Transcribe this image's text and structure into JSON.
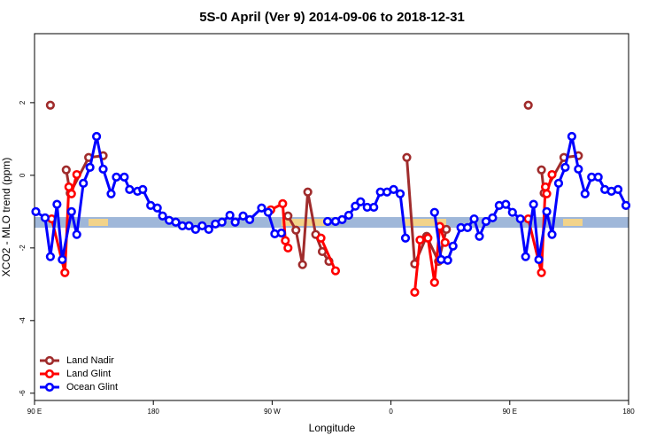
{
  "chart_data": {
    "type": "line",
    "title": "5S-0 April (Ver 9)   2014-09-06 to 2018-12-31",
    "x_label": "Longitude",
    "y_label": "XCO2 - MLO trend (ppm)",
    "xlim": [
      90,
      540
    ],
    "ylim": [
      -6.2,
      3.9
    ],
    "xticks": [
      {
        "value": 90,
        "label": "90 E"
      },
      180,
      {
        "value": 270,
        "label": "90 W"
      },
      {
        "value": 360,
        "label": "0"
      },
      {
        "value": 450,
        "label": "90 E"
      },
      {
        "value": 540,
        "label": "180"
      }
    ],
    "yticks": [
      -6,
      -4,
      -2,
      0,
      2
    ],
    "legend": "bottom-left",
    "series": [
      {
        "name": "Land Nadir",
        "color": "#a02c2c",
        "x": [
          102,
          108,
          114,
          117,
          131,
          142,
          200,
          282,
          288,
          293,
          297,
          303,
          308,
          313,
          340,
          372,
          378,
          387,
          396,
          402,
          430,
          464,
          470,
          474,
          476,
          491,
          502
        ],
        "values": [
          1.93,
          null,
          0.15,
          -0.49,
          0.49,
          0.54,
          null,
          -1.12,
          -1.51,
          -2.46,
          -0.46,
          -1.63,
          -2.1,
          -2.37,
          null,
          0.49,
          -2.44,
          -1.68,
          -2.37,
          -1.49,
          null,
          1.93,
          null,
          0.15,
          -0.49,
          0.49,
          0.54
        ]
      },
      {
        "name": "Land Glint",
        "color": "#ff0000",
        "x": [
          103,
          113,
          116,
          118,
          122,
          200,
          269,
          278,
          280,
          282,
          295,
          307,
          318,
          340,
          378,
          382,
          388,
          393,
          397,
          401,
          430,
          464,
          474,
          477,
          478,
          482
        ],
        "values": [
          -1.2,
          -2.68,
          -0.32,
          -0.51,
          0.02,
          null,
          -0.95,
          -0.78,
          -1.8,
          -2.0,
          null,
          -1.73,
          -2.63,
          null,
          -3.22,
          -1.78,
          -1.73,
          -2.95,
          -1.41,
          -1.85,
          null,
          -1.2,
          -2.68,
          -0.32,
          -0.51,
          0.02
        ]
      },
      {
        "name": "Ocean Glint",
        "color": "#0000ff",
        "x": [
          91,
          98,
          102,
          107,
          111,
          118,
          122,
          127,
          132,
          137,
          142,
          148,
          152,
          158,
          162,
          168,
          172,
          178,
          183,
          187,
          192,
          197,
          202,
          207,
          212,
          217,
          222,
          227,
          232,
          238,
          242,
          248,
          253,
          262,
          267,
          272,
          277,
          295,
          312,
          318,
          323,
          328,
          333,
          337,
          342,
          347,
          352,
          357,
          362,
          367,
          371,
          382,
          393,
          398,
          403,
          407,
          413,
          418,
          423,
          427,
          432,
          437,
          442,
          447,
          452,
          458,
          462,
          468,
          472,
          478,
          482,
          487,
          492,
          497,
          502,
          507,
          512,
          517,
          522,
          527,
          532,
          538
        ],
        "values": [
          -1.0,
          -1.17,
          -2.24,
          -0.8,
          -2.32,
          -1.0,
          -1.63,
          -0.22,
          0.22,
          1.07,
          0.17,
          -0.51,
          -0.05,
          -0.05,
          -0.39,
          -0.44,
          -0.39,
          -0.83,
          -0.9,
          -1.12,
          -1.24,
          -1.29,
          -1.39,
          -1.39,
          -1.49,
          -1.39,
          -1.49,
          -1.34,
          -1.29,
          -1.1,
          -1.29,
          -1.12,
          -1.22,
          -0.9,
          -1.02,
          -1.61,
          -1.59,
          null,
          -1.27,
          -1.27,
          -1.22,
          -1.1,
          -0.85,
          -0.73,
          -0.88,
          -0.88,
          -0.46,
          -0.46,
          -0.39,
          -0.51,
          -1.73,
          null,
          -1.02,
          -2.32,
          -2.34,
          -1.95,
          -1.44,
          -1.44,
          -1.2,
          -1.68,
          -1.27,
          -1.17,
          -0.83,
          -0.8,
          -1.02,
          -1.2,
          -2.24,
          -0.8,
          -2.32,
          -1.0,
          -1.63,
          -0.22,
          0.22,
          1.07,
          0.17,
          -0.51,
          -0.05,
          -0.05,
          -0.39,
          -0.44,
          -0.39,
          -0.83
        ]
      }
    ]
  }
}
